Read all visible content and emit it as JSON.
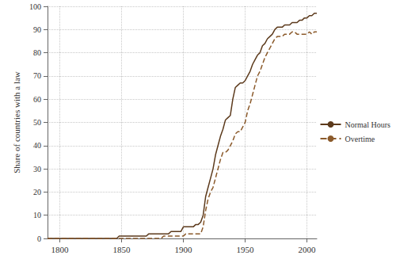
{
  "chart_data": {
    "type": "line",
    "y_label": "Share of countries with a law",
    "x": [
      1790,
      1846,
      1848,
      1870,
      1872,
      1882,
      1884,
      1888,
      1890,
      1898,
      1900,
      1902,
      1908,
      1910,
      1912,
      1914,
      1916,
      1918,
      1920,
      1922,
      1924,
      1926,
      1928,
      1930,
      1932,
      1934,
      1936,
      1938,
      1940,
      1942,
      1944,
      1946,
      1948,
      1950,
      1952,
      1954,
      1956,
      1958,
      1960,
      1962,
      1964,
      1966,
      1968,
      1970,
      1972,
      1974,
      1976,
      1978,
      1980,
      1982,
      1984,
      1986,
      1988,
      1990,
      1992,
      1994,
      1996,
      1998,
      2000,
      2002,
      2004,
      2006,
      2008
    ],
    "series": [
      {
        "name": "Normal Hours",
        "color": "#5c3a1c",
        "line_style": "solid",
        "values": [
          0,
          0,
          1,
          1,
          2,
          2,
          2,
          2,
          3,
          3,
          5,
          5,
          5,
          6,
          6,
          7,
          10,
          18,
          22,
          26,
          30,
          36,
          40,
          44,
          47,
          51,
          52,
          53,
          60,
          65,
          66,
          67,
          67,
          68,
          70,
          72,
          75,
          77,
          79,
          80,
          83,
          84,
          86,
          87,
          88,
          90,
          91,
          91,
          91,
          92,
          92,
          92,
          93,
          93,
          93,
          94,
          94,
          95,
          95,
          96,
          96,
          97,
          97
        ]
      },
      {
        "name": "Overtime",
        "color": "#8b5a2b",
        "line_style": "dashed",
        "values": [
          0,
          0,
          0,
          0,
          0,
          0,
          1,
          1,
          1,
          1,
          1,
          2,
          2,
          2,
          2,
          2,
          5,
          12,
          17,
          20,
          22,
          26,
          30,
          34,
          37,
          37,
          38,
          40,
          42,
          45,
          46,
          46,
          48,
          50,
          55,
          58,
          62,
          66,
          70,
          72,
          75,
          78,
          80,
          82,
          84,
          86,
          87,
          87,
          87,
          88,
          88,
          88,
          89,
          89,
          88,
          88,
          88,
          88,
          88,
          89,
          88,
          89,
          89
        ]
      }
    ],
    "xlim": [
      1790,
      2008
    ],
    "xticks": [
      1800,
      1850,
      1900,
      1950,
      2000
    ],
    "ylim": [
      0,
      100
    ],
    "yticks": [
      0,
      10,
      20,
      30,
      40,
      50,
      60,
      70,
      80,
      90,
      100
    ],
    "grid": true,
    "legend": "right"
  }
}
